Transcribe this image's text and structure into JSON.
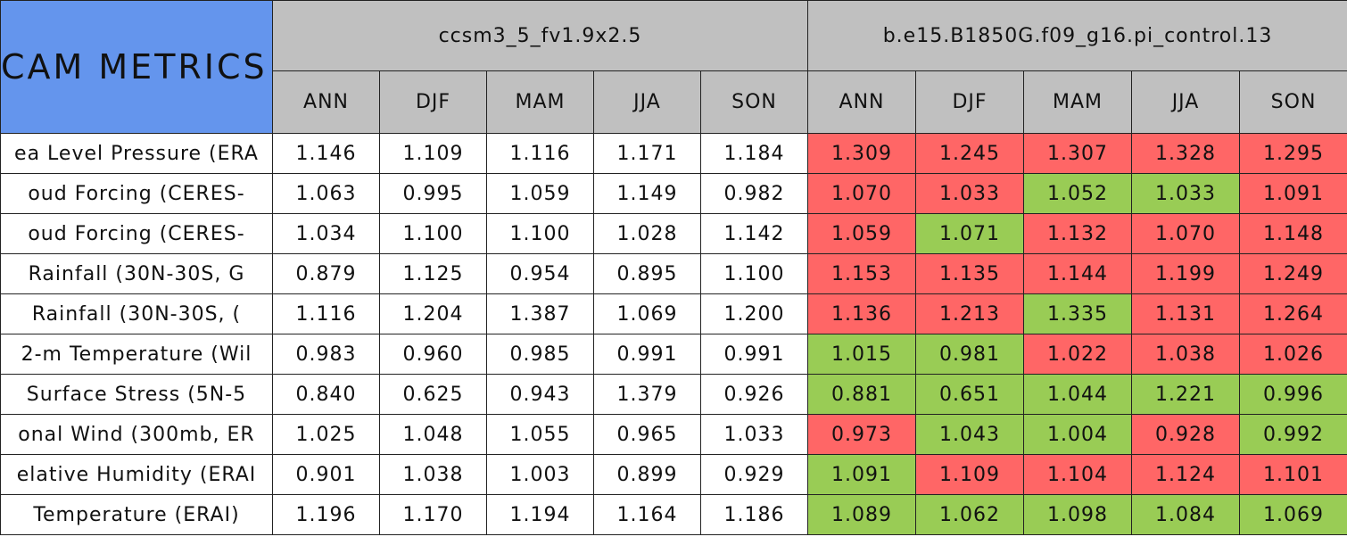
{
  "header": {
    "title": "CAM METRICS",
    "groups": [
      "ccsm3_5_fv1.9x2.5",
      "b.e15.B1850G.f09_g16.pi_control.13"
    ],
    "seasons": [
      "ANN",
      "DJF",
      "MAM",
      "JJA",
      "SON",
      "ANN",
      "DJF",
      "MAM",
      "JJA",
      "SON"
    ]
  },
  "colors": {
    "header": "#c0c0c0",
    "title": "#6495ed",
    "worse": "#ff6666",
    "better": "#99cc55",
    "plain": "#ffffff"
  },
  "table": {
    "rows": [
      {
        "label": "ea Level Pressure (ERA",
        "values": [
          "1.146",
          "1.109",
          "1.116",
          "1.171",
          "1.184",
          "1.309",
          "1.245",
          "1.307",
          "1.328",
          "1.295"
        ],
        "status": [
          "plain",
          "plain",
          "plain",
          "plain",
          "plain",
          "worse",
          "worse",
          "worse",
          "worse",
          "worse"
        ]
      },
      {
        "label": "oud Forcing (CERES-",
        "values": [
          "1.063",
          "0.995",
          "1.059",
          "1.149",
          "0.982",
          "1.070",
          "1.033",
          "1.052",
          "1.033",
          "1.091"
        ],
        "status": [
          "plain",
          "plain",
          "plain",
          "plain",
          "plain",
          "worse",
          "worse",
          "better",
          "better",
          "worse"
        ]
      },
      {
        "label": "oud Forcing (CERES-",
        "values": [
          "1.034",
          "1.100",
          "1.100",
          "1.028",
          "1.142",
          "1.059",
          "1.071",
          "1.132",
          "1.070",
          "1.148"
        ],
        "status": [
          "plain",
          "plain",
          "plain",
          "plain",
          "plain",
          "worse",
          "better",
          "worse",
          "worse",
          "worse"
        ]
      },
      {
        "label": "Rainfall (30N-30S, G",
        "values": [
          "0.879",
          "1.125",
          "0.954",
          "0.895",
          "1.100",
          "1.153",
          "1.135",
          "1.144",
          "1.199",
          "1.249"
        ],
        "status": [
          "plain",
          "plain",
          "plain",
          "plain",
          "plain",
          "worse",
          "worse",
          "worse",
          "worse",
          "worse"
        ]
      },
      {
        "label": "Rainfall (30N-30S, (",
        "values": [
          "1.116",
          "1.204",
          "1.387",
          "1.069",
          "1.200",
          "1.136",
          "1.213",
          "1.335",
          "1.131",
          "1.264"
        ],
        "status": [
          "plain",
          "plain",
          "plain",
          "plain",
          "plain",
          "worse",
          "worse",
          "better",
          "worse",
          "worse"
        ]
      },
      {
        "label": "2-m Temperature (Wil",
        "values": [
          "0.983",
          "0.960",
          "0.985",
          "0.991",
          "0.991",
          "1.015",
          "0.981",
          "1.022",
          "1.038",
          "1.026"
        ],
        "status": [
          "plain",
          "plain",
          "plain",
          "plain",
          "plain",
          "better",
          "better",
          "worse",
          "worse",
          "worse"
        ]
      },
      {
        "label": "Surface Stress (5N-5",
        "values": [
          "0.840",
          "0.625",
          "0.943",
          "1.379",
          "0.926",
          "0.881",
          "0.651",
          "1.044",
          "1.221",
          "0.996"
        ],
        "status": [
          "plain",
          "plain",
          "plain",
          "plain",
          "plain",
          "better",
          "better",
          "better",
          "better",
          "better"
        ]
      },
      {
        "label": "onal Wind (300mb, ER",
        "values": [
          "1.025",
          "1.048",
          "1.055",
          "0.965",
          "1.033",
          "0.973",
          "1.043",
          "1.004",
          "0.928",
          "0.992"
        ],
        "status": [
          "plain",
          "plain",
          "plain",
          "plain",
          "plain",
          "worse",
          "better",
          "better",
          "worse",
          "better"
        ]
      },
      {
        "label": "elative Humidity (ERAI",
        "values": [
          "0.901",
          "1.038",
          "1.003",
          "0.899",
          "0.929",
          "1.091",
          "1.109",
          "1.104",
          "1.124",
          "1.101"
        ],
        "status": [
          "plain",
          "plain",
          "plain",
          "plain",
          "plain",
          "better",
          "worse",
          "worse",
          "worse",
          "worse"
        ]
      },
      {
        "label": "Temperature (ERAI)",
        "values": [
          "1.196",
          "1.170",
          "1.194",
          "1.164",
          "1.186",
          "1.089",
          "1.062",
          "1.098",
          "1.084",
          "1.069"
        ],
        "status": [
          "plain",
          "plain",
          "plain",
          "plain",
          "plain",
          "better",
          "better",
          "better",
          "better",
          "better"
        ]
      }
    ]
  }
}
